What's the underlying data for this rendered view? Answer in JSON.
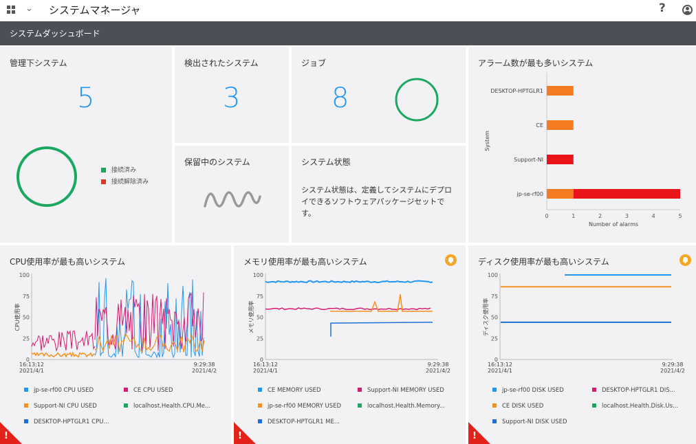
{
  "app": {
    "title": "システムマネージャ",
    "help_symbol": "?",
    "dashboard_title": "システムダッシュボード"
  },
  "tiles": {
    "managed": {
      "title": "管理下システム",
      "count": "5",
      "legend": [
        {
          "label": "接続済み",
          "color": "#1aa861"
        },
        {
          "label": "接続解除済み",
          "color": "#e8341a"
        }
      ]
    },
    "discovered": {
      "title": "検出されたシステム",
      "count": "3"
    },
    "jobs": {
      "title": "ジョブ",
      "count": "8"
    },
    "pending": {
      "title": "保留中のシステム"
    },
    "state": {
      "title": "システム状態",
      "description": "システム状態は、定義してシステムにデプロイできるソフトウェアパッケージセットです。"
    },
    "alarms": {
      "title": "アラーム数が最も多いシステム"
    }
  },
  "colors": {
    "accent": "#2196f3",
    "ring": "#1aa861",
    "orange": "#f57c22",
    "red": "#e8141a",
    "bell": "#f5a623"
  },
  "chart_data": [
    {
      "type": "bar",
      "orientation": "horizontal",
      "stacked": true,
      "categories": [
        "DESKTOP-HPTGLR1",
        "CE",
        "Support-NI",
        "jp-se-rf00"
      ],
      "series": [
        {
          "color": "#f57c22",
          "values": [
            1,
            1,
            0,
            1
          ]
        },
        {
          "color": "#e8141a",
          "values": [
            0,
            0,
            1,
            4
          ]
        }
      ],
      "xlabel": "Number of alarms",
      "ylabel": "System",
      "xlim": [
        0,
        5
      ],
      "xticks": [
        0,
        1,
        2,
        3,
        4,
        5
      ]
    },
    {
      "type": "line",
      "title": "CPU使用率が最も高いシステム",
      "ylabel": "CPU使用率",
      "ylim": [
        0,
        100
      ],
      "yticks": [
        0,
        25,
        50,
        75,
        100
      ],
      "x_start": [
        "16:13:12",
        "2021/4/1"
      ],
      "x_end": [
        "9:29:38",
        "2021/4/2"
      ],
      "alert": true,
      "alert_symbol": "!",
      "series": [
        {
          "name": "jp-se-rf00 CPU USED",
          "color": "#2196f3"
        },
        {
          "name": "CE CPU USED",
          "color": "#d81b72"
        },
        {
          "name": "Support-NI CPU USED",
          "color": "#f5901e"
        },
        {
          "name": "localhost.Health.CPU.Me...",
          "color": "#1aa861"
        },
        {
          "name": "DESKTOP-HPTGLR1 CPU...",
          "color": "#1e6fd9"
        }
      ]
    },
    {
      "type": "line",
      "title": "メモリ使用率が最も高いシステム",
      "ylabel": "メモリ使用率",
      "ylim": [
        0,
        100
      ],
      "yticks": [
        0,
        25,
        50,
        75,
        100
      ],
      "x_start": [
        "16:13:12",
        "2021/4/1"
      ],
      "x_end": [
        "9:29:38",
        "2021/4/2"
      ],
      "alert": true,
      "alert_symbol": "!",
      "series": [
        {
          "name": "CE MEMORY USED",
          "color": "#2196f3"
        },
        {
          "name": "Support-NI MEMORY USED",
          "color": "#d81b72"
        },
        {
          "name": "jp-se-rf00 MEMORY USED",
          "color": "#f5901e"
        },
        {
          "name": "localhost.Health.Memory...",
          "color": "#1aa861"
        },
        {
          "name": "DESKTOP-HPTGLR1 ME...",
          "color": "#1e6fd9"
        }
      ]
    },
    {
      "type": "line",
      "title": "ディスク使用率が最も高いシステム",
      "ylabel": "ディスク使用率",
      "ylim": [
        0,
        100
      ],
      "yticks": [
        0,
        25,
        50,
        75,
        100
      ],
      "x_start": [
        "16:13:12",
        "2021/4/1"
      ],
      "x_end": [
        "9:29:38",
        "2021/4/2"
      ],
      "alert": true,
      "alert_symbol": "!",
      "series": [
        {
          "name": "jp-se-rf00 DISK USED",
          "color": "#2196f3"
        },
        {
          "name": "DESKTOP-HPTGLR1 DIS...",
          "color": "#d81b72"
        },
        {
          "name": "CE DISK USED",
          "color": "#f5901e"
        },
        {
          "name": "localhost.Health.Disk.Us...",
          "color": "#1aa861"
        },
        {
          "name": "Support-NI DISK USED",
          "color": "#1e6fd9"
        }
      ]
    }
  ]
}
